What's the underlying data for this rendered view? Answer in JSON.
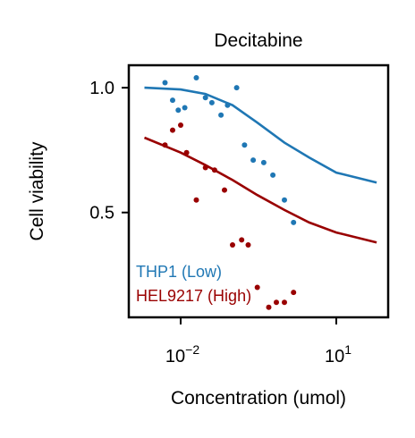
{
  "chart_data": {
    "type": "scatter",
    "title": "Decitabine",
    "xlabel": "Concentration (umol)",
    "ylabel": "Cell viability",
    "xscale": "log",
    "xlim": [
      0.001,
      100
    ],
    "ylim": [
      0.08,
      1.09
    ],
    "xticks": [
      {
        "value": 0.01,
        "base": "10",
        "exp": "−2"
      },
      {
        "value": 10,
        "base": "10",
        "exp": "1"
      }
    ],
    "yticks": [
      {
        "value": 1.0,
        "label": "1.0"
      },
      {
        "value": 0.5,
        "label": "0.5"
      }
    ],
    "grid": false,
    "legend_placement": "bottom-left",
    "series": [
      {
        "name": "THP1 (Low)",
        "color": "#1f77b4",
        "points": [
          {
            "x": 0.005,
            "y": 1.02
          },
          {
            "x": 0.007,
            "y": 0.95
          },
          {
            "x": 0.009,
            "y": 0.91
          },
          {
            "x": 0.012,
            "y": 0.92
          },
          {
            "x": 0.02,
            "y": 1.04
          },
          {
            "x": 0.03,
            "y": 0.96
          },
          {
            "x": 0.04,
            "y": 0.94
          },
          {
            "x": 0.06,
            "y": 0.89
          },
          {
            "x": 0.08,
            "y": 0.93
          },
          {
            "x": 0.12,
            "y": 1.0
          },
          {
            "x": 0.17,
            "y": 0.77
          },
          {
            "x": 0.25,
            "y": 0.71
          },
          {
            "x": 0.4,
            "y": 0.7
          },
          {
            "x": 0.6,
            "y": 0.65
          },
          {
            "x": 1.0,
            "y": 0.55
          },
          {
            "x": 1.5,
            "y": 0.46
          }
        ],
        "fit": [
          {
            "x": 0.002,
            "y": 1.0
          },
          {
            "x": 0.01,
            "y": 0.993
          },
          {
            "x": 0.03,
            "y": 0.975
          },
          {
            "x": 0.1,
            "y": 0.93
          },
          {
            "x": 0.3,
            "y": 0.86
          },
          {
            "x": 1,
            "y": 0.78
          },
          {
            "x": 3,
            "y": 0.72
          },
          {
            "x": 10,
            "y": 0.66
          },
          {
            "x": 60,
            "y": 0.62
          }
        ]
      },
      {
        "name": "HEL9217 (High)",
        "color": "#990000",
        "points": [
          {
            "x": 0.005,
            "y": 0.77
          },
          {
            "x": 0.007,
            "y": 0.83
          },
          {
            "x": 0.01,
            "y": 0.85
          },
          {
            "x": 0.013,
            "y": 0.74
          },
          {
            "x": 0.02,
            "y": 0.55
          },
          {
            "x": 0.03,
            "y": 0.68
          },
          {
            "x": 0.045,
            "y": 0.67
          },
          {
            "x": 0.07,
            "y": 0.59
          },
          {
            "x": 0.1,
            "y": 0.37
          },
          {
            "x": 0.15,
            "y": 0.39
          },
          {
            "x": 0.2,
            "y": 0.37
          },
          {
            "x": 0.3,
            "y": 0.2
          },
          {
            "x": 0.5,
            "y": 0.12
          },
          {
            "x": 0.7,
            "y": 0.14
          },
          {
            "x": 1.0,
            "y": 0.14
          },
          {
            "x": 1.5,
            "y": 0.18
          }
        ],
        "fit": [
          {
            "x": 0.002,
            "y": 0.8
          },
          {
            "x": 0.01,
            "y": 0.74
          },
          {
            "x": 0.03,
            "y": 0.69
          },
          {
            "x": 0.1,
            "y": 0.63
          },
          {
            "x": 0.3,
            "y": 0.57
          },
          {
            "x": 1,
            "y": 0.51
          },
          {
            "x": 3,
            "y": 0.46
          },
          {
            "x": 10,
            "y": 0.42
          },
          {
            "x": 60,
            "y": 0.38
          }
        ]
      }
    ]
  }
}
